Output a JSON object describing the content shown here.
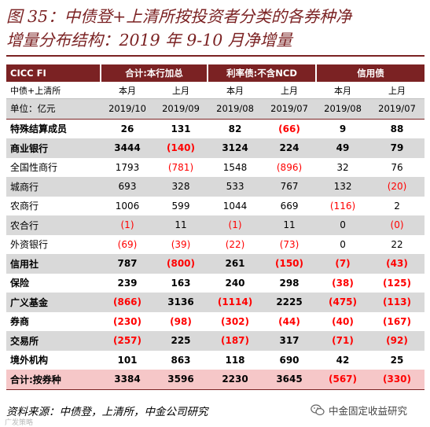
{
  "title": {
    "line1": "图 35：中债登+上清所按投资者分类的各券种净",
    "line2": "增量分布结构：2019 年 9-10 月净增量"
  },
  "table": {
    "corner": "CICC FI",
    "group_headers": [
      "合计:本行加总",
      "利率债:不含NCD",
      "信用债"
    ],
    "sub_label": "中债+上清所",
    "sub_headers": [
      "本月",
      "上月",
      "本月",
      "上月",
      "本月",
      "上月"
    ],
    "unit_label": "单位：亿元",
    "periods": [
      "2019/10",
      "2019/09",
      "2019/08",
      "2019/07",
      "2019/08",
      "2019/07"
    ],
    "rows": [
      {
        "label": "特殊结算成员",
        "values": [
          "26",
          "131",
          "82",
          "(66)",
          "9",
          "88"
        ]
      },
      {
        "label": "商业银行",
        "values": [
          "3444",
          "(140)",
          "3124",
          "224",
          "49",
          "79"
        ]
      },
      {
        "label": "全国性商行",
        "values": [
          "1793",
          "(781)",
          "1548",
          "(896)",
          "32",
          "76"
        ]
      },
      {
        "label": "城商行",
        "values": [
          "693",
          "328",
          "533",
          "767",
          "132",
          "(20)"
        ]
      },
      {
        "label": "农商行",
        "values": [
          "1006",
          "599",
          "1044",
          "669",
          "(116)",
          "2"
        ]
      },
      {
        "label": "农合行",
        "values": [
          "(1)",
          "11",
          "(1)",
          "11",
          "0",
          "(0)"
        ]
      },
      {
        "label": "外资银行",
        "values": [
          "(69)",
          "(39)",
          "(22)",
          "(73)",
          "0",
          "22"
        ]
      },
      {
        "label": "信用社",
        "values": [
          "787",
          "(800)",
          "261",
          "(150)",
          "(7)",
          "(43)"
        ]
      },
      {
        "label": "保险",
        "values": [
          "239",
          "163",
          "240",
          "298",
          "(38)",
          "(125)"
        ]
      },
      {
        "label": "广义基金",
        "values": [
          "(866)",
          "3136",
          "(1114)",
          "2225",
          "(475)",
          "(113)"
        ]
      },
      {
        "label": "券商",
        "values": [
          "(230)",
          "(98)",
          "(302)",
          "(44)",
          "(40)",
          "(167)"
        ]
      },
      {
        "label": "交易所",
        "values": [
          "(257)",
          "225",
          "(187)",
          "317",
          "(71)",
          "(92)"
        ]
      },
      {
        "label": "境外机构",
        "values": [
          "101",
          "863",
          "118",
          "690",
          "42",
          "25"
        ]
      },
      {
        "label": "合计:按券种",
        "values": [
          "3384",
          "3596",
          "2230",
          "3645",
          "(567)",
          "(330)"
        ]
      }
    ]
  },
  "source": "资料来源：中债登，上清所，中金公司研究",
  "watermark": {
    "text": "中金固定收益研究",
    "small": "广发策略",
    "icon": "wechat-icon"
  },
  "colors": {
    "accent": "#7b2223",
    "negative": "#ff0000",
    "band_gray": "#d9d9d9",
    "total_pink": "#f6c7c8"
  }
}
